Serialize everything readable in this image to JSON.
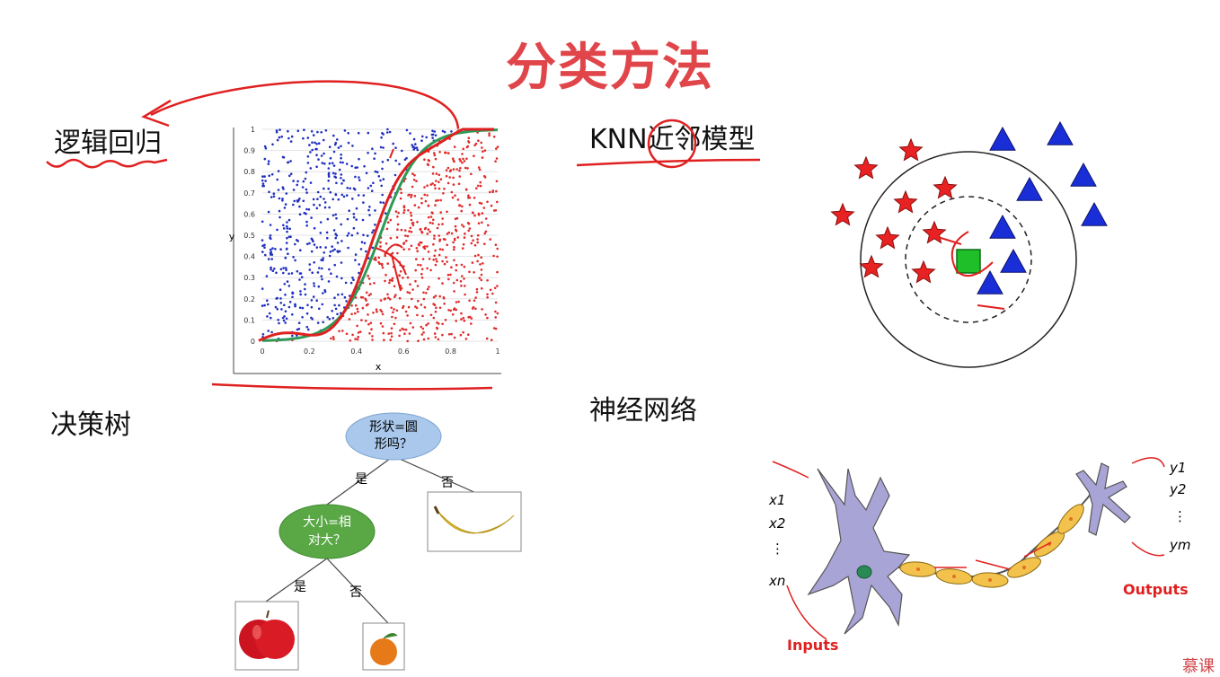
{
  "slide": {
    "title": "分类方法",
    "sections": {
      "logistic_regression": "逻辑回归",
      "knn": "KNN近邻模型",
      "decision_tree": "决策树",
      "neural_network": "神经网络"
    }
  },
  "chart_data": {
    "type": "scatter",
    "xlabel": "x",
    "ylabel": "y",
    "xlim": [
      0,
      1
    ],
    "ylim": [
      0,
      1
    ],
    "xticks": [
      "0",
      "0.2",
      "0.4",
      "0.6",
      "0.8",
      "1"
    ],
    "yticks": [
      "0",
      "0.1",
      "0.2",
      "0.3",
      "0.4",
      "0.5",
      "0.6",
      "0.7",
      "0.8",
      "0.9",
      "1"
    ],
    "series": [
      {
        "color": "#1f2fbf",
        "region": "above-curve"
      },
      {
        "color": "#e02b2b",
        "region": "below-curve"
      }
    ],
    "boundary_color": "#2e9a57",
    "grid": true
  },
  "decision_tree": {
    "root": "形状=圆\n形吗？",
    "child": "大小=相\n对大？",
    "yes": "是",
    "no": "否",
    "root_color": "#a9c8ec",
    "child_color": "#5aa845"
  },
  "neuron": {
    "inputs": [
      "x1",
      "x2",
      "⋮",
      "xn"
    ],
    "outputs": [
      "y1",
      "y2",
      "⋮",
      "ym"
    ],
    "inputs_label": "Inputs",
    "outputs_label": "Outputs"
  },
  "colors": {
    "accent": "#e0454a",
    "annotation": "#e02020",
    "star": "#e82222",
    "triangle": "#1a2ed8",
    "square": "#1fbf2a"
  },
  "watermark": "慕课"
}
